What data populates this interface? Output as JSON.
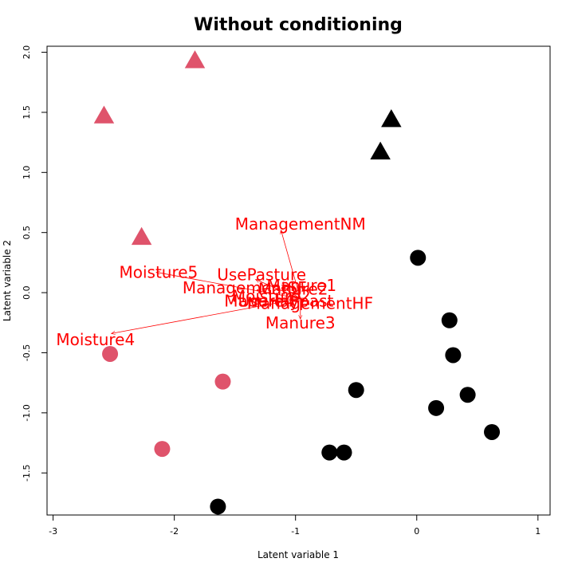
{
  "chart_data": {
    "type": "scatter",
    "title": "Without conditioning",
    "xlabel": "Latent variable 1",
    "ylabel": "Latent variable 2",
    "xlim": [
      -3.05,
      1.1
    ],
    "ylim": [
      -1.85,
      2.05
    ],
    "x_ticks": [
      "-3",
      "-2",
      "-1",
      "0",
      "1"
    ],
    "y_ticks": [
      "-1.5",
      "-1.0",
      "-0.5",
      "0.0",
      "0.5",
      "1.0",
      "1.5",
      "2.0"
    ],
    "x_tick_values": [
      -3,
      -2,
      -1,
      0,
      1
    ],
    "y_tick_values": [
      -1.5,
      -1.0,
      -0.5,
      0.0,
      0.5,
      1.0,
      1.5,
      2.0
    ],
    "grid": false,
    "colors": {
      "red": "#df536b",
      "black": "#000000",
      "arrow": "#ff0000"
    },
    "points": [
      {
        "x": -1.83,
        "y": 1.93,
        "shape": "triangle",
        "color": "red"
      },
      {
        "x": -2.58,
        "y": 1.47,
        "shape": "triangle",
        "color": "red"
      },
      {
        "x": -2.27,
        "y": 0.46,
        "shape": "triangle",
        "color": "red"
      },
      {
        "x": -0.21,
        "y": 1.44,
        "shape": "triangle",
        "color": "black"
      },
      {
        "x": -0.3,
        "y": 1.17,
        "shape": "triangle",
        "color": "black"
      },
      {
        "x": -2.53,
        "y": -0.51,
        "shape": "circle",
        "color": "red"
      },
      {
        "x": -1.6,
        "y": -0.74,
        "shape": "circle",
        "color": "red"
      },
      {
        "x": -2.1,
        "y": -1.3,
        "shape": "circle",
        "color": "red"
      },
      {
        "x": 0.01,
        "y": 0.29,
        "shape": "circle",
        "color": "black"
      },
      {
        "x": 0.27,
        "y": -0.23,
        "shape": "circle",
        "color": "black"
      },
      {
        "x": 0.3,
        "y": -0.52,
        "shape": "circle",
        "color": "black"
      },
      {
        "x": -0.5,
        "y": -0.81,
        "shape": "circle",
        "color": "black"
      },
      {
        "x": 0.42,
        "y": -0.85,
        "shape": "circle",
        "color": "black"
      },
      {
        "x": 0.16,
        "y": -0.96,
        "shape": "circle",
        "color": "black"
      },
      {
        "x": 0.62,
        "y": -1.16,
        "shape": "circle",
        "color": "black"
      },
      {
        "x": -0.72,
        "y": -1.33,
        "shape": "circle",
        "color": "black"
      },
      {
        "x": -0.6,
        "y": -1.33,
        "shape": "circle",
        "color": "black"
      },
      {
        "x": -1.64,
        "y": -1.78,
        "shape": "circle",
        "color": "black"
      }
    ],
    "arrow_origin": {
      "x": -0.96,
      "y": -0.05
    },
    "arrows": [
      {
        "label": "ManagementNM",
        "x": -1.12,
        "y": 0.52,
        "lx": -0.96,
        "ly": 0.56
      },
      {
        "label": "Moisture5",
        "x": -2.15,
        "y": 0.17,
        "lx": -2.13,
        "ly": 0.16
      },
      {
        "label": "Moisture4",
        "x": -2.52,
        "y": -0.34,
        "lx": -2.65,
        "ly": -0.4
      },
      {
        "label": "UsePasture",
        "x": -1.33,
        "y": 0.11,
        "lx": -1.28,
        "ly": 0.14
      },
      {
        "label": "ManagementSF",
        "x": -1.1,
        "y": 0.04,
        "lx": -1.42,
        "ly": 0.03
      },
      {
        "label": "Manure3",
        "x": -0.96,
        "y": -0.22,
        "lx": -0.96,
        "ly": -0.26
      },
      {
        "label": "Manure1",
        "x": -0.98,
        "y": 0.04,
        "lx": -0.95,
        "ly": 0.05
      },
      {
        "label": "Manure2",
        "x": -1.0,
        "y": 0.03,
        "lx": -1.02,
        "ly": 0.02
      },
      {
        "label": "Moisture2",
        "x": -1.05,
        "y": -0.02,
        "lx": -1.2,
        "ly": -0.04
      },
      {
        "label": "UseHaypast",
        "x": -1.02,
        "y": -0.07,
        "lx": -1.08,
        "ly": -0.08
      },
      {
        "label": "ManagementHF",
        "x": -0.92,
        "y": -0.07,
        "lx": -0.88,
        "ly": -0.1
      },
      {
        "label": "Manure4",
        "x": -1.2,
        "y": -0.06,
        "lx": -1.3,
        "ly": -0.08
      }
    ]
  }
}
